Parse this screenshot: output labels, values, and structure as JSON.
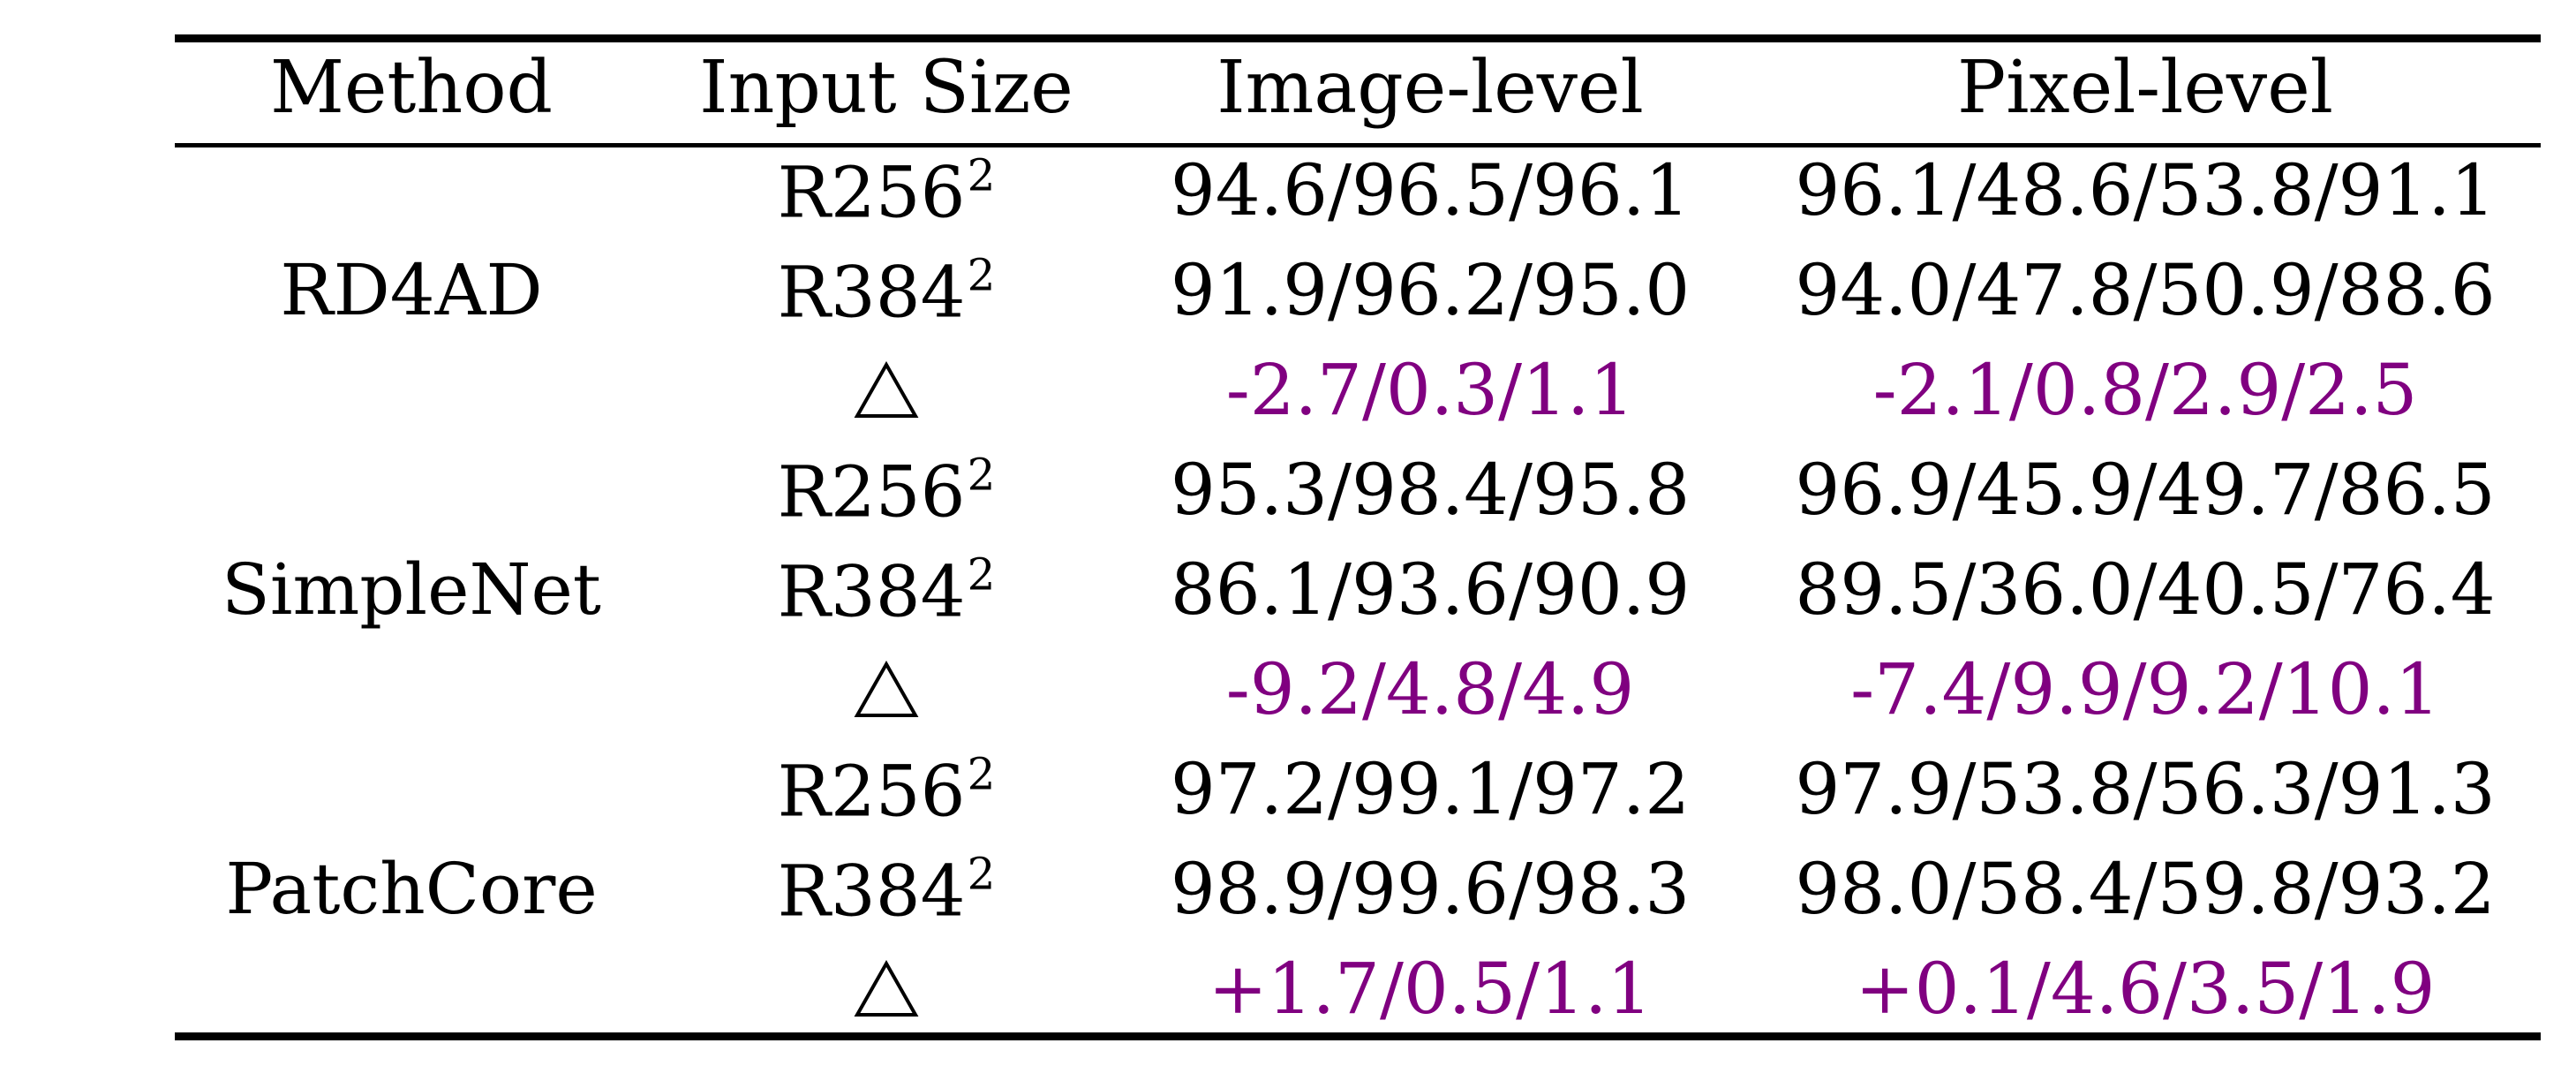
{
  "table": {
    "headers": {
      "method": "Method",
      "input_size": "Input Size",
      "image_level": "Image-level",
      "pixel_level": "Pixel-level"
    },
    "groups": [
      {
        "method": "RD4AD",
        "rows": [
          {
            "size_base": "R256",
            "size_exp": "2",
            "image": "94.6/96.5/96.1",
            "pixel": "96.1/48.6/53.8/91.1"
          },
          {
            "size_base": "R384",
            "size_exp": "2",
            "image": "91.9/96.2/95.0",
            "pixel": "94.0/47.8/50.9/88.6"
          }
        ],
        "delta": {
          "image": "-2.7/0.3/1.1",
          "pixel": "-2.1/0.8/2.9/2.5"
        }
      },
      {
        "method": "SimpleNet",
        "rows": [
          {
            "size_base": "R256",
            "size_exp": "2",
            "image": "95.3/98.4/95.8",
            "pixel": "96.9/45.9/49.7/86.5"
          },
          {
            "size_base": "R384",
            "size_exp": "2",
            "image": "86.1/93.6/90.9",
            "pixel": "89.5/36.0/40.5/76.4"
          }
        ],
        "delta": {
          "image": "-9.2/4.8/4.9",
          "pixel": "-7.4/9.9/9.2/10.1"
        }
      },
      {
        "method": "PatchCore",
        "rows": [
          {
            "size_base": "R256",
            "size_exp": "2",
            "image": "97.2/99.1/97.2",
            "pixel": "97.9/53.8/56.3/91.3"
          },
          {
            "size_base": "R384",
            "size_exp": "2",
            "image": "98.9/99.6/98.3",
            "pixel": "98.0/58.4/59.8/93.2"
          }
        ],
        "delta": {
          "image": "+1.7/0.5/1.1",
          "pixel": "+0.1/4.6/3.5/1.9"
        }
      }
    ],
    "colors": {
      "delta_text": "#800080",
      "rules": "#000000"
    },
    "icons": {
      "delta_symbol": "triangle-outline-icon"
    }
  }
}
